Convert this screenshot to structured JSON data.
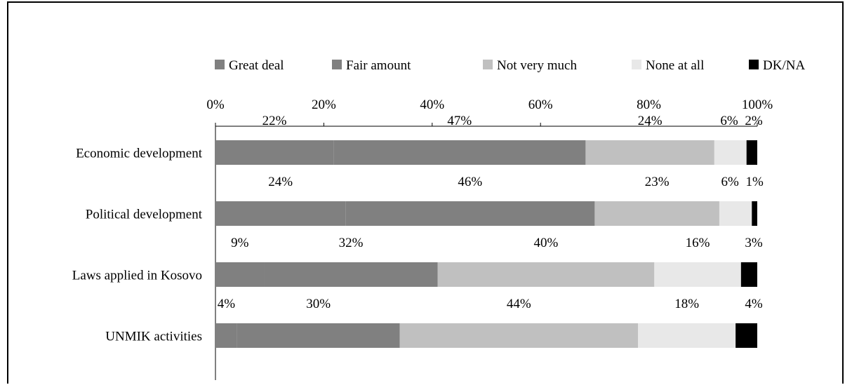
{
  "chart_data": {
    "type": "bar",
    "orientation": "horizontal",
    "stacked": true,
    "normalized_percent": true,
    "categories": [
      "Economic development",
      "Political development",
      "Laws applied in Kosovo",
      "UNMIK activities"
    ],
    "series": [
      {
        "name": "Great deal",
        "color": "#808080",
        "values": [
          22,
          24,
          9,
          4
        ]
      },
      {
        "name": "Fair amount",
        "color": "#808080",
        "values": [
          47,
          46,
          32,
          30
        ]
      },
      {
        "name": "Not very much",
        "color": "#c0c0c0",
        "values": [
          24,
          23,
          40,
          44
        ]
      },
      {
        "name": "None at all",
        "color": "#e8e8e8",
        "values": [
          6,
          6,
          16,
          18
        ]
      },
      {
        "name": "DK/NA",
        "color": "#000000",
        "values": [
          2,
          1,
          3,
          4
        ]
      }
    ],
    "x_ticks": [
      "0%",
      "20%",
      "40%",
      "60%",
      "80%",
      "100%"
    ],
    "xlim": [
      0,
      100
    ],
    "x_axis_position": "top",
    "legend_position": "top",
    "grid": false,
    "title": "",
    "xlabel": "",
    "ylabel": ""
  }
}
